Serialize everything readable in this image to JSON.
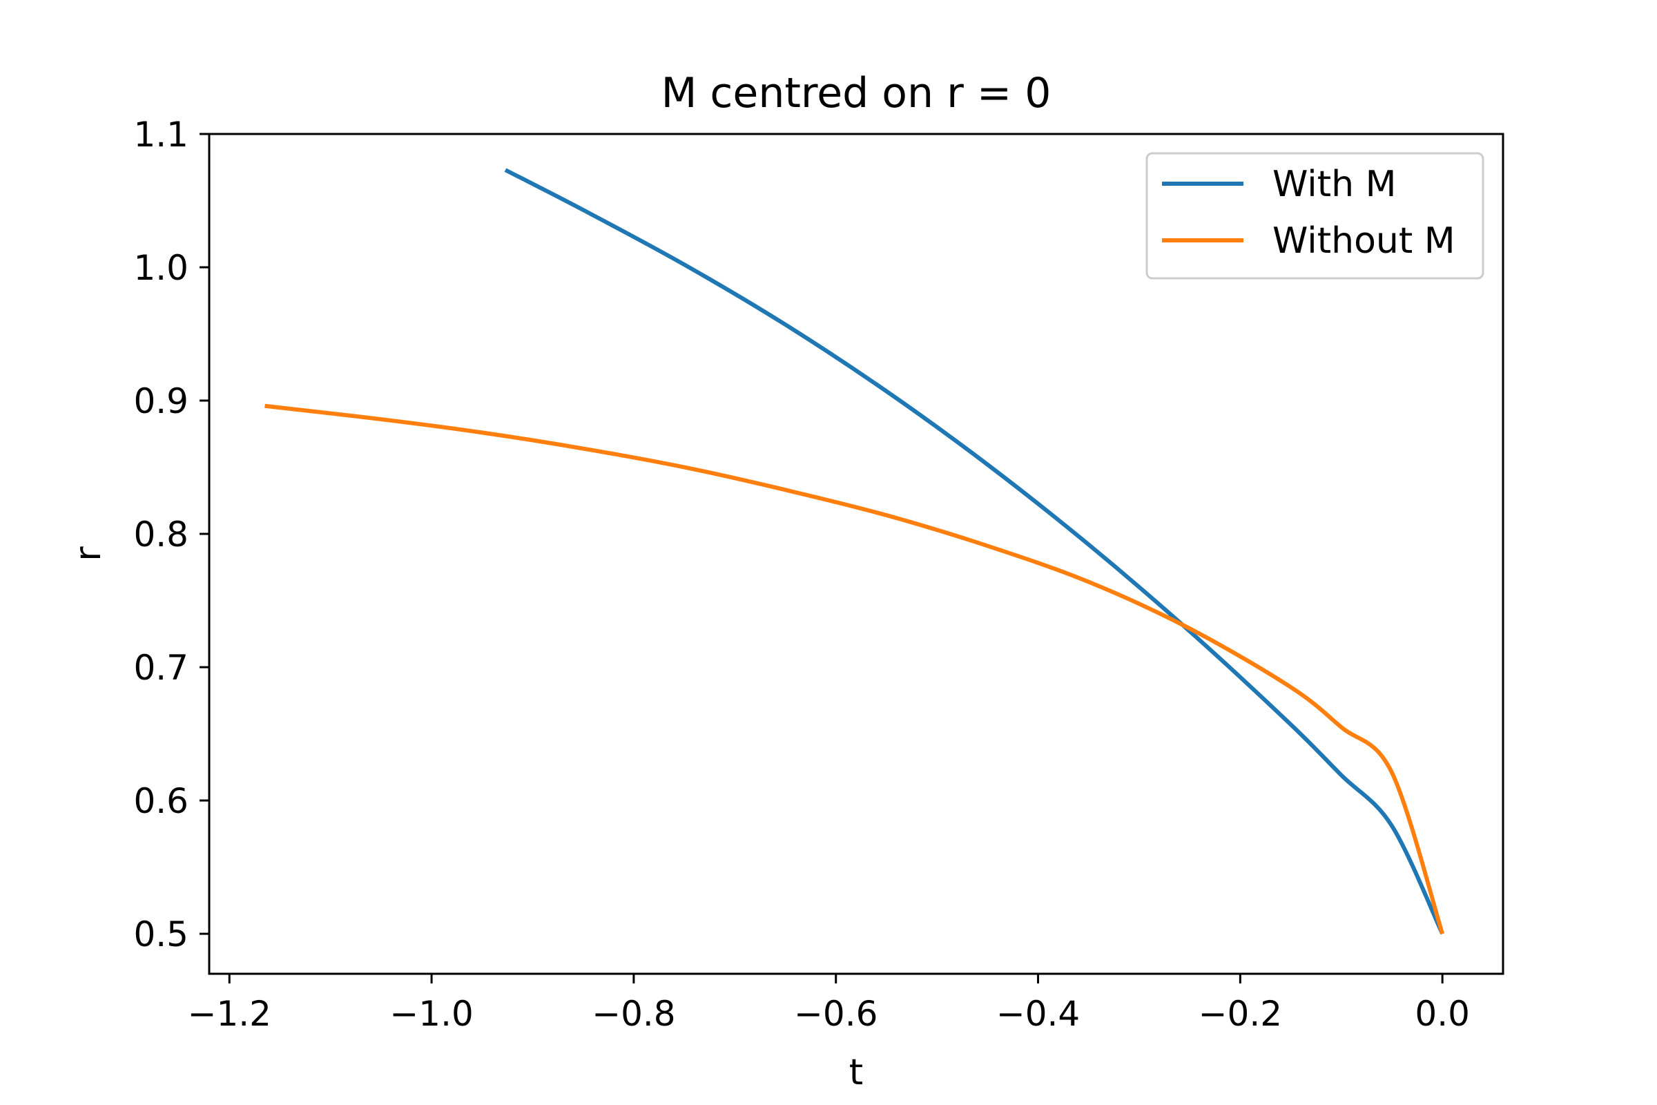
{
  "chart_data": {
    "type": "line",
    "title": "M centred on r = 0",
    "xlabel": "t",
    "ylabel": "r",
    "xlim": [
      -1.22,
      0.06
    ],
    "ylim": [
      0.47,
      1.1
    ],
    "xticks": [
      -1.2,
      -1.0,
      -0.8,
      -0.6,
      -0.4,
      -0.2,
      0.0
    ],
    "xtick_labels": [
      "−1.2",
      "−1.0",
      "−0.8",
      "−0.6",
      "−0.4",
      "−0.2",
      "0.0"
    ],
    "yticks": [
      0.5,
      0.6,
      0.7,
      0.8,
      0.9,
      1.0,
      1.1
    ],
    "ytick_labels": [
      "0.5",
      "0.6",
      "0.7",
      "0.8",
      "0.9",
      "1.0",
      "1.1"
    ],
    "grid": false,
    "legend_position": "top-right",
    "series": [
      {
        "name": "With M",
        "color": "#1f77b4",
        "x": [
          -0.927,
          -0.85,
          -0.75,
          -0.65,
          -0.55,
          -0.45,
          -0.35,
          -0.25,
          -0.15,
          -0.1,
          -0.05,
          0.0
        ],
        "y": [
          1.073,
          1.043,
          1.002,
          0.957,
          0.907,
          0.852,
          0.792,
          0.727,
          0.657,
          0.619,
          0.581,
          0.5
        ]
      },
      {
        "name": "Without M",
        "color": "#ff7f0e",
        "x": [
          -1.165,
          -1.05,
          -0.95,
          -0.85,
          -0.75,
          -0.65,
          -0.55,
          -0.45,
          -0.35,
          -0.25,
          -0.15,
          -0.1,
          -0.05,
          0.0
        ],
        "y": [
          0.896,
          0.886,
          0.876,
          0.864,
          0.85,
          0.833,
          0.814,
          0.791,
          0.764,
          0.729,
          0.685,
          0.655,
          0.621,
          0.5
        ]
      }
    ]
  }
}
